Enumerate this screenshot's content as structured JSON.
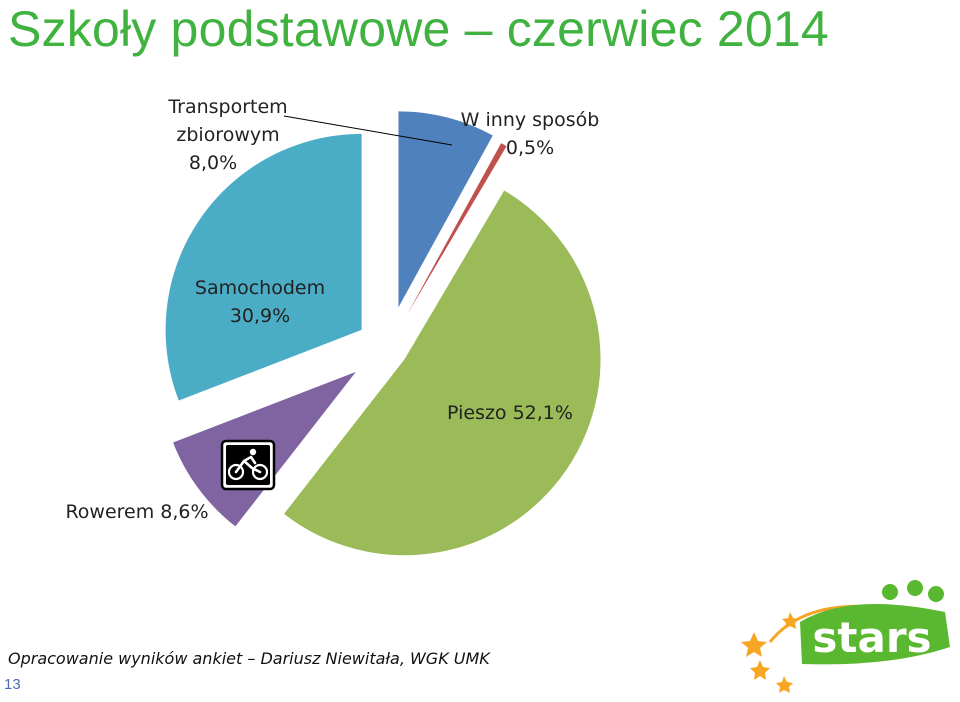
{
  "title": "Szkoły podstawowe – czerwiec 2014",
  "credit": "Opracowanie wyników ankiet – Dariusz Niewitała, WGK UMK",
  "page_number": "13",
  "logo_text": "stars",
  "chart_data": {
    "type": "pie",
    "unit": "%",
    "slices": [
      {
        "label": "Transportem zbiorowym",
        "value": 8.0,
        "display": "8,0%",
        "color": "#4f81bd"
      },
      {
        "label": "W inny sposób",
        "value": 0.5,
        "display": "0,5%",
        "color": "#c0504d"
      },
      {
        "label": "Pieszo",
        "value": 52.1,
        "display": "52,1%",
        "color": "#9bbb59"
      },
      {
        "label": "Rowerem",
        "value": 8.6,
        "display": "8,6%",
        "color": "#8064a2"
      },
      {
        "label": "Samochodem",
        "value": 30.9,
        "display": "30,9%",
        "color": "#4bacc6"
      }
    ]
  },
  "labels": {
    "transport_line1": "Transportem",
    "transport_line2": "zbiorowym",
    "transport_value": "8,0%",
    "inny_line1": "W inny sposób",
    "inny_value": "0,5%",
    "samochodem_line1": "Samochodem",
    "samochodem_value": "30,9%",
    "pieszo": "Pieszo 52,1%",
    "rowerem": "Rowerem 8,6%"
  },
  "icons": {
    "bike": "bicycle-icon"
  }
}
